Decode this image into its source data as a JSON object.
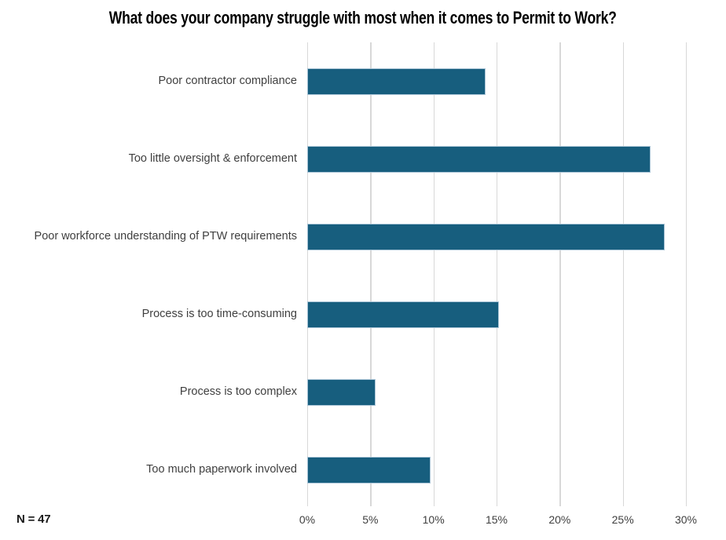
{
  "chart_data": {
    "type": "bar",
    "orientation": "horizontal",
    "title": "What does your company struggle with most when it comes to Permit to Work?",
    "categories": [
      "Poor contractor compliance",
      "Too little oversight & enforcement",
      "Poor workforce understanding of PTW requirements",
      "Process is too time-consuming",
      "Process is too complex",
      "Too much paperwork involved"
    ],
    "values": [
      14.1,
      27.2,
      28.3,
      15.2,
      5.4,
      9.8
    ],
    "xlabel": "",
    "ylabel": "",
    "xlim": [
      0,
      30
    ],
    "x_ticks": [
      "0%",
      "5%",
      "10%",
      "15%",
      "20%",
      "25%",
      "30%"
    ],
    "grid": "vertical-only",
    "legend": "none",
    "note": "N = 47",
    "colors": {
      "bar_fill": "#175e7e",
      "bar_border": "#a9c4d6",
      "gridline": "#d8d8d8",
      "category_label": "#3f3f3f",
      "tick_label": "#404040",
      "title": "#000000"
    }
  }
}
